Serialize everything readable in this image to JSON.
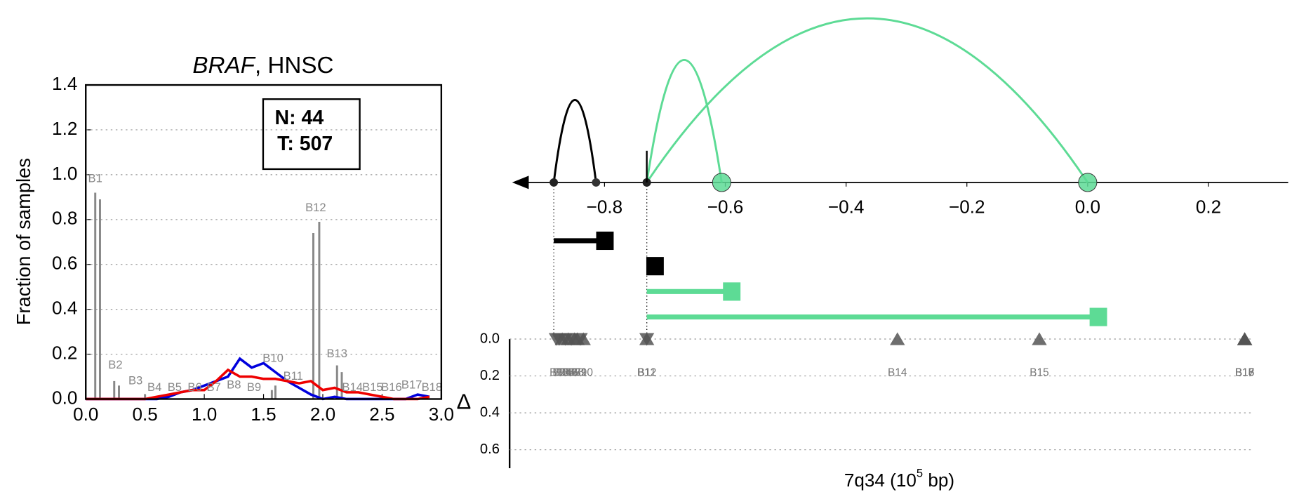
{
  "chart_data": [
    {
      "type": "line",
      "title": [
        "BRAF",
        ", HNSC"
      ],
      "ylabel": "Fraction of samples",
      "xlim": [
        0,
        3
      ],
      "xticks": [
        {
          "value": 0,
          "label": "0.0"
        },
        {
          "value": 0.5,
          "label": "0.5"
        },
        {
          "value": 1,
          "label": "1.0"
        },
        {
          "value": 1.5,
          "label": "1.5"
        },
        {
          "value": 2,
          "label": "2.0"
        },
        {
          "value": 2.5,
          "label": "2.5"
        },
        {
          "value": 3,
          "label": "3.0"
        }
      ],
      "ylim": [
        0,
        1.4
      ],
      "yticks": [
        {
          "value": 0,
          "label": "0.0"
        },
        {
          "value": 0.2,
          "label": "0.2"
        },
        {
          "value": 0.4,
          "label": "0.4"
        },
        {
          "value": 0.6,
          "label": "0.6"
        },
        {
          "value": 0.8,
          "label": "0.8"
        },
        {
          "value": 1,
          "label": "1.0"
        },
        {
          "value": 1.2,
          "label": "1.2"
        },
        {
          "value": 1.4,
          "label": "1.4"
        }
      ],
      "grid": true,
      "annotation": [
        "N: 44",
        "T: 507"
      ],
      "x": [
        0,
        0.1,
        0.2,
        0.3,
        0.4,
        0.5,
        0.6,
        0.7,
        0.8,
        0.9,
        1.0,
        1.1,
        1.2,
        1.3,
        1.4,
        1.5,
        1.6,
        1.7,
        1.8,
        1.9,
        2.0,
        2.1,
        2.2,
        2.3,
        2.4,
        2.5,
        2.6,
        2.7,
        2.8,
        2.9
      ],
      "series": [
        {
          "color": "#0000dd",
          "values": [
            0,
            0,
            0,
            0,
            0,
            0,
            0,
            0.01,
            0.03,
            0.04,
            0.06,
            0.08,
            0.1,
            0.18,
            0.14,
            0.16,
            0.12,
            0.08,
            0.05,
            0.02,
            0,
            0.01,
            0,
            0,
            0,
            0,
            0,
            0,
            0.02,
            0.01
          ]
        },
        {
          "color": "#ee0000",
          "values": [
            0,
            0,
            0,
            0,
            0,
            0,
            0.01,
            0.02,
            0.03,
            0.04,
            0.04,
            0.08,
            0.13,
            0.1,
            0.1,
            0.09,
            0.09,
            0.08,
            0.07,
            0.08,
            0.04,
            0.05,
            0.03,
            0.03,
            0.02,
            0.01,
            0,
            0,
            0,
            0.01
          ]
        }
      ],
      "stems": {
        "color": "#888888",
        "x": [
          0.08,
          0.12,
          0.24,
          0.28,
          0.5,
          1.57,
          1.6,
          1.92,
          1.97,
          2.12,
          2.16
        ],
        "values": [
          0.92,
          0.89,
          0.08,
          0.06,
          0.02,
          0.04,
          0.06,
          0.74,
          0.79,
          0.15,
          0.12
        ]
      },
      "peak_labels": {
        "labels": [
          "B1",
          "B2",
          "B3",
          "B4",
          "B5",
          "B6",
          "B7",
          "B8",
          "B9",
          "B10",
          "B11",
          "B12",
          "B13",
          "B14",
          "B15",
          "B16",
          "B17",
          "B18"
        ],
        "x": [
          0.08,
          0.25,
          0.42,
          0.58,
          0.75,
          0.92,
          1.08,
          1.25,
          1.42,
          1.58,
          1.75,
          1.94,
          2.12,
          2.25,
          2.42,
          2.58,
          2.75,
          2.92
        ],
        "y": [
          0.98,
          0.15,
          0.08,
          0.05,
          0.05,
          0.05,
          0.05,
          0.06,
          0.05,
          0.18,
          0.1,
          0.85,
          0.2,
          0.05,
          0.05,
          0.05,
          0.06,
          0.05
        ]
      }
    },
    {
      "type": "arc",
      "xlim": [
        -0.953,
        0.332
      ],
      "xticks": [
        {
          "value": -0.8,
          "label": "−0.8"
        },
        {
          "value": -0.6,
          "label": "−0.6"
        },
        {
          "value": -0.4,
          "label": "−0.4"
        },
        {
          "value": -0.2,
          "label": "−0.2"
        },
        {
          "value": 0,
          "label": "0.0"
        },
        {
          "value": 0.2,
          "label": "0.2"
        }
      ],
      "arcs": [
        {
          "start": -0.884,
          "end": -0.814,
          "color": "#000000",
          "end_marker": "dot"
        },
        {
          "start": -0.73,
          "end": -0.606,
          "color": "#5ddb95",
          "end_marker": "circle"
        },
        {
          "start": -0.73,
          "end": 0.0,
          "color": "#5ddb95",
          "end_marker": "circle"
        }
      ],
      "segments": [
        {
          "start": -0.884,
          "end": -0.8,
          "color": "#000000"
        },
        {
          "start": -0.73,
          "end": -0.717,
          "color": "#000000"
        },
        {
          "start": -0.73,
          "end": -0.59,
          "color": "#5ddb95"
        },
        {
          "start": -0.73,
          "end": 0.017,
          "color": "#5ddb95"
        }
      ],
      "ylim": [
        0,
        0.7
      ],
      "yticks": [
        {
          "value": 0,
          "label": "0.0"
        },
        {
          "value": 0.2,
          "label": "0.2"
        },
        {
          "value": 0.4,
          "label": "0.4"
        },
        {
          "value": 0.6,
          "label": "0.6"
        }
      ],
      "ylabel": "Δ",
      "xlabel": [
        "7q34 (10",
        "5",
        " bp)"
      ],
      "grid": true,
      "markers": {
        "color": "#555555",
        "names": [
          "B1",
          "B2",
          "B3",
          "B4",
          "B5",
          "B6",
          "B7",
          "B8",
          "B9",
          "B10",
          "B11",
          "B12",
          "B13",
          "B14",
          "B15",
          "B16",
          "B17",
          "B18"
        ],
        "x": [
          -0.88,
          -0.875,
          -0.87,
          -0.865,
          -0.86,
          -0.855,
          -0.85,
          -0.845,
          -0.84,
          -0.835,
          -0.73,
          -0.73,
          0.26,
          -0.315,
          -0.08,
          0.26,
          0.26,
          0.26
        ],
        "delta": [
          0,
          0,
          0,
          0,
          0,
          0,
          0,
          0,
          0,
          0,
          0,
          0,
          0,
          0,
          0,
          0,
          0,
          0
        ],
        "direction": [
          "down",
          "down",
          "up",
          "down",
          "up",
          "down",
          "up",
          "up",
          "down",
          "up",
          "down",
          "up",
          "up",
          "up",
          "up",
          "up",
          "up",
          "up"
        ]
      }
    }
  ]
}
